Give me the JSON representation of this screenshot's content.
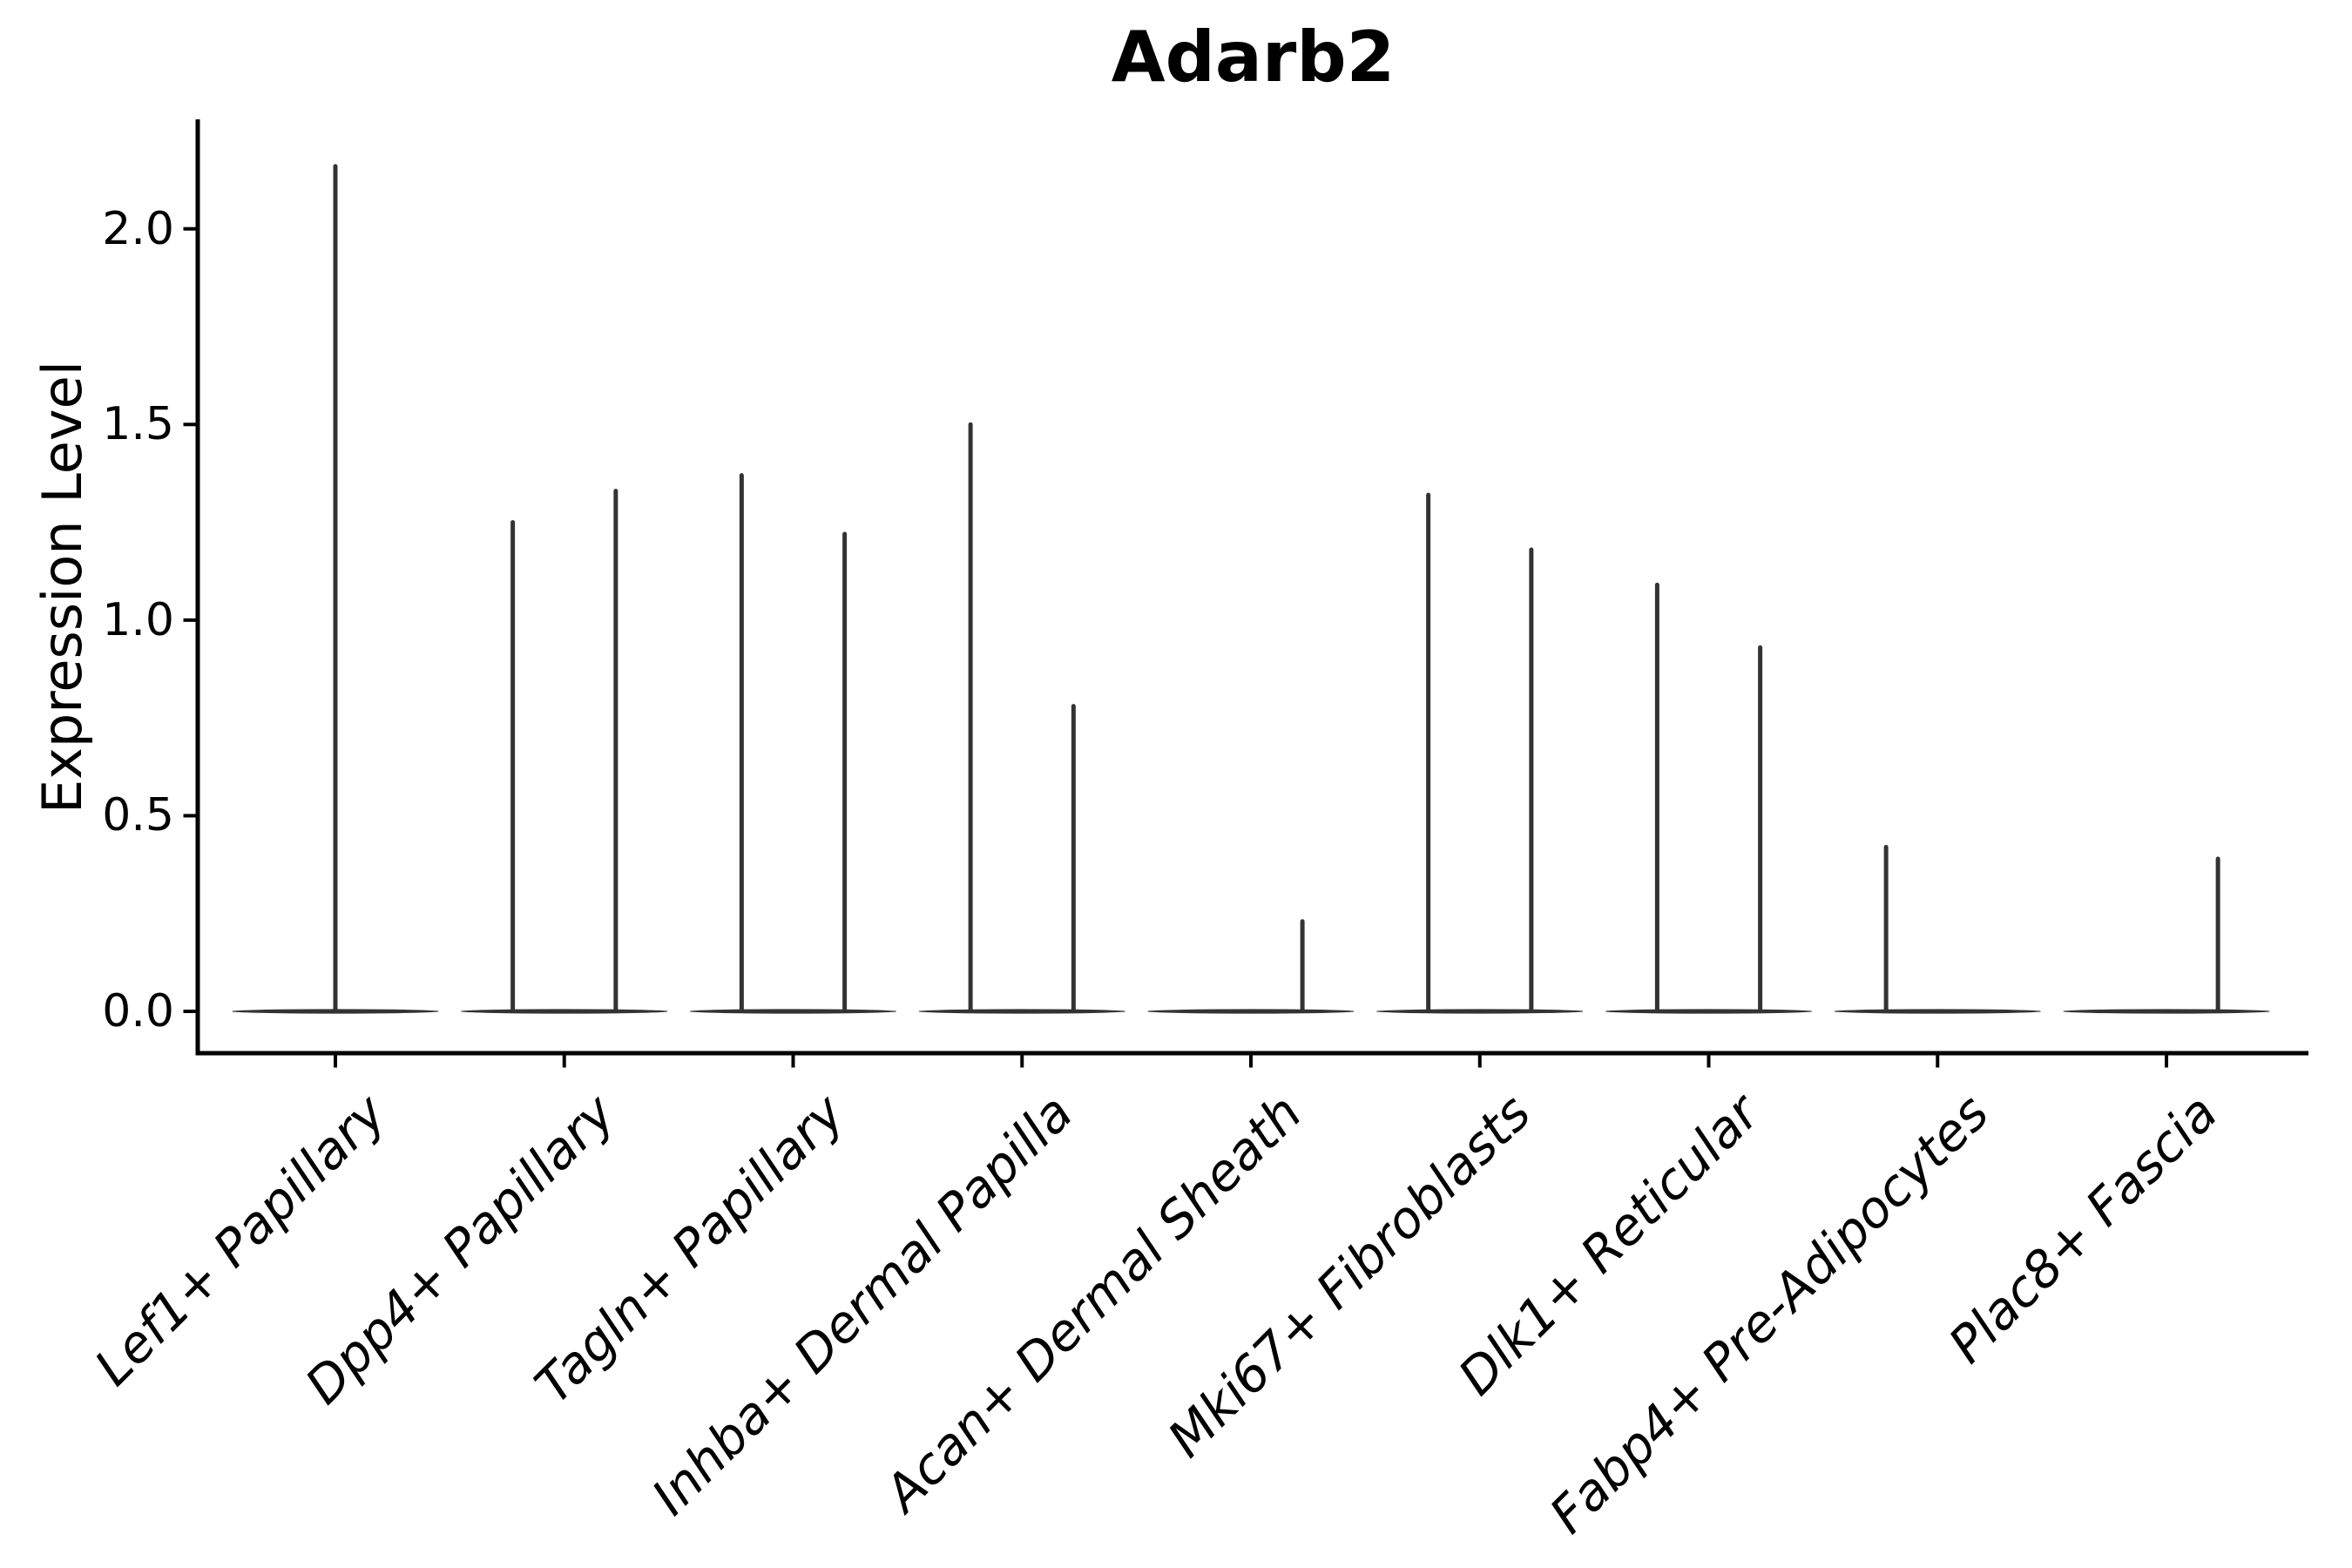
{
  "chart_data": {
    "type": "violin",
    "title": "Adarb2",
    "ylabel": "Expression Level",
    "xlabel": "",
    "ytick_labels": [
      "0.0",
      "0.5",
      "1.0",
      "1.5",
      "2.0"
    ],
    "ytick_values": [
      0.0,
      0.5,
      1.0,
      1.5,
      2.0
    ],
    "ylim": [
      -0.11,
      2.28
    ],
    "grid": false,
    "legend": "none",
    "x_label_rotation_deg": 45,
    "categories": [
      "Lef1+ Papillary",
      "Dpp4+ Papillary",
      "Tagln+ Papillary",
      "Inhba+ Dermal Papilla",
      "Acan+ Dermal Sheath",
      "Mki67+ Fibroblasts",
      "Dlk1+ Reticular",
      "Fabp4+ Pre-Adipocytes",
      "Plac8+ Fascia"
    ],
    "violins": [
      {
        "category": "Lef1+ Papillary",
        "baseline_halfwidth": 0.45,
        "spikes": [
          {
            "offset": 0.0,
            "max": 2.16
          }
        ]
      },
      {
        "category": "Dpp4+ Papillary",
        "baseline_halfwidth": 0.45,
        "spikes": [
          {
            "offset": -0.225,
            "max": 1.25
          },
          {
            "offset": 0.225,
            "max": 1.33
          }
        ]
      },
      {
        "category": "Tagln+ Papillary",
        "baseline_halfwidth": 0.45,
        "spikes": [
          {
            "offset": -0.225,
            "max": 1.37
          },
          {
            "offset": 0.225,
            "max": 1.22
          }
        ]
      },
      {
        "category": "Inhba+ Dermal Papilla",
        "baseline_halfwidth": 0.45,
        "spikes": [
          {
            "offset": -0.225,
            "max": 1.5
          },
          {
            "offset": 0.225,
            "max": 0.78
          }
        ]
      },
      {
        "category": "Acan+ Dermal Sheath",
        "baseline_halfwidth": 0.45,
        "spikes": [
          {
            "offset": 0.225,
            "max": 0.23
          }
        ]
      },
      {
        "category": "Mki67+ Fibroblasts",
        "baseline_halfwidth": 0.45,
        "spikes": [
          {
            "offset": -0.225,
            "max": 1.32
          },
          {
            "offset": 0.225,
            "max": 1.18
          }
        ]
      },
      {
        "category": "Dlk1+ Reticular",
        "baseline_halfwidth": 0.45,
        "spikes": [
          {
            "offset": -0.225,
            "max": 1.09
          },
          {
            "offset": 0.225,
            "max": 0.93
          }
        ]
      },
      {
        "category": "Fabp4+ Pre-Adipocytes",
        "baseline_halfwidth": 0.45,
        "spikes": [
          {
            "offset": -0.225,
            "max": 0.42
          }
        ]
      },
      {
        "category": "Plac8+ Fascia",
        "baseline_halfwidth": 0.45,
        "spikes": [
          {
            "offset": 0.225,
            "max": 0.39
          }
        ]
      }
    ],
    "colors": {
      "violin": "#333333",
      "axis": "#000000",
      "text": "#000000",
      "background": "#ffffff"
    }
  }
}
